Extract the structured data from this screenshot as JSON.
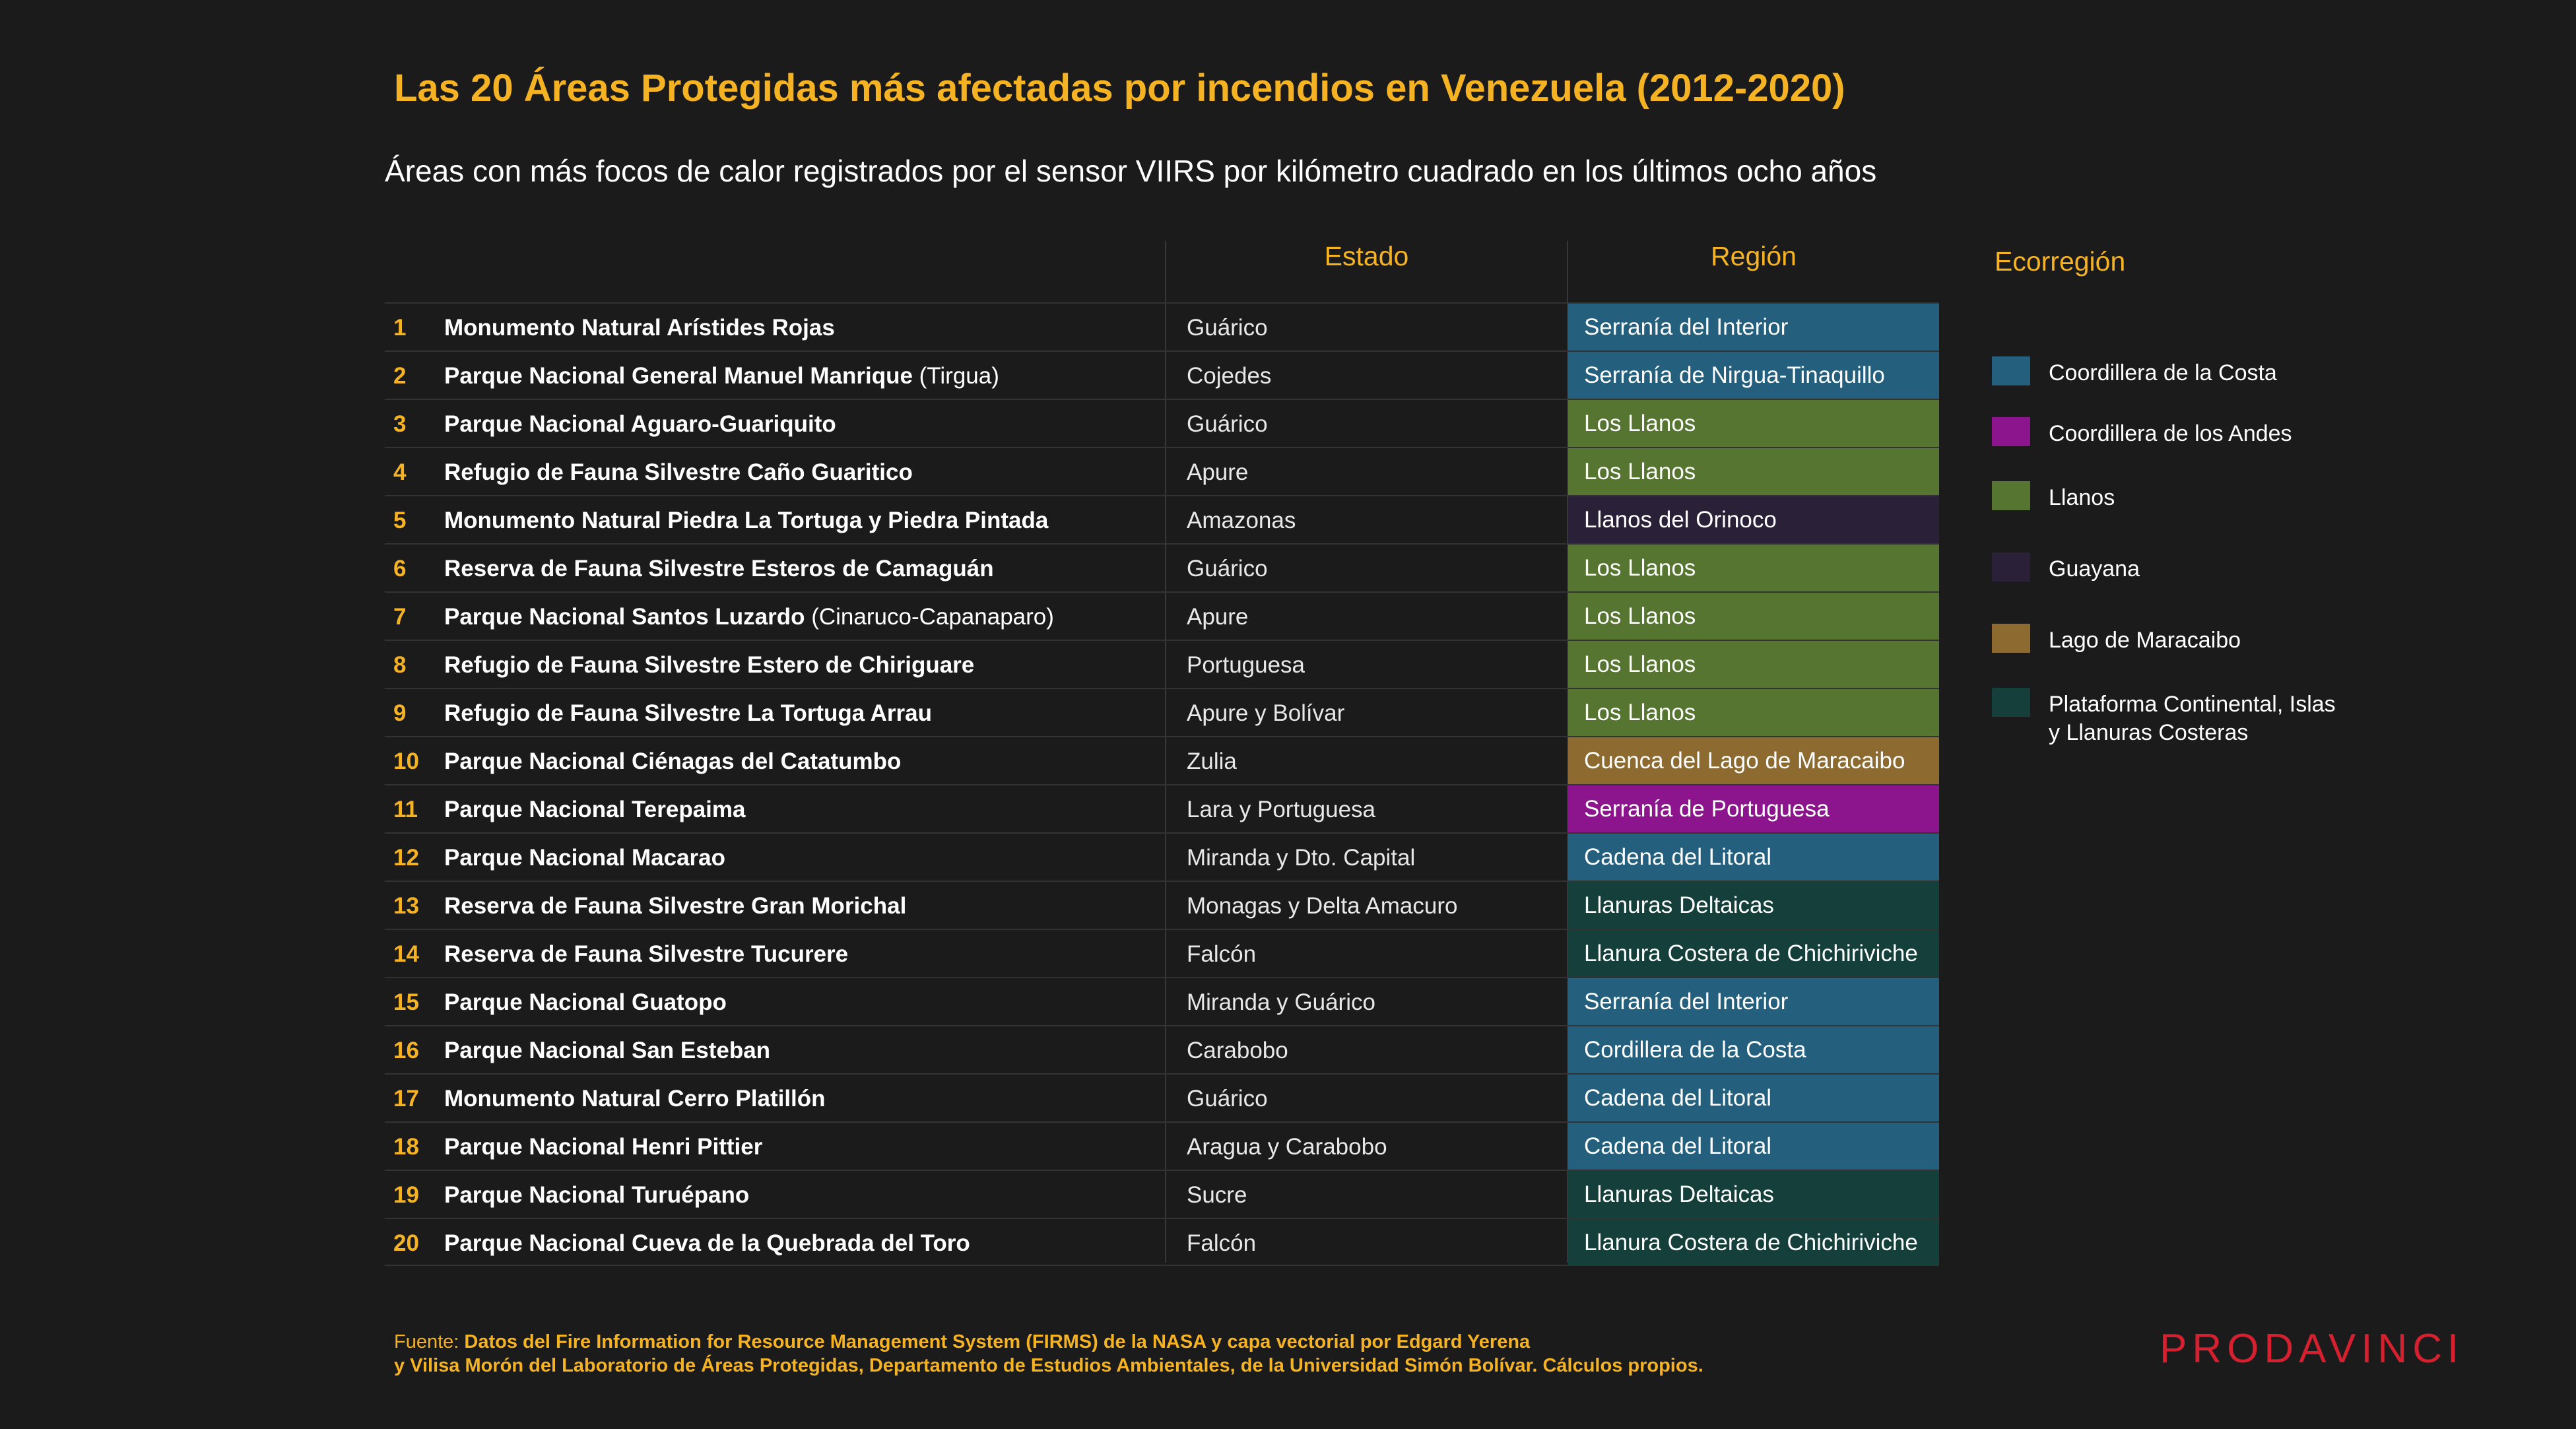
{
  "title": "Las 20 Áreas Protegidas más afectadas por incendios en Venezuela (2012-2020)",
  "subtitle": "Áreas con más focos de calor registrados por el sensor VIIRS por kilómetro cuadrado en los últimos ocho años",
  "headers": {
    "estado": "Estado",
    "region": "Región"
  },
  "colors": {
    "accent": "#f5b324",
    "costa": "#24607d",
    "andes": "#8c148c",
    "llanos": "#567530",
    "guayana": "#2a2138",
    "maracaibo": "#8d6a30",
    "plataforma": "#153f3a",
    "brand": "#d4202f"
  },
  "rows": [
    {
      "num": "1",
      "name": "Monumento Natural Arístides Rojas",
      "extra": "",
      "estado": "Guárico",
      "region": "Serranía del Interior",
      "eco": "costa"
    },
    {
      "num": "2",
      "name": "Parque Nacional General Manuel Manrique",
      "extra": " (Tirgua)",
      "estado": "Cojedes",
      "region": "Serranía de Nirgua-Tinaquillo",
      "eco": "costa"
    },
    {
      "num": "3",
      "name": "Parque Nacional Aguaro-Guariquito",
      "extra": "",
      "estado": "Guárico",
      "region": "Los Llanos",
      "eco": "llanos"
    },
    {
      "num": "4",
      "name": "Refugio de Fauna Silvestre Caño Guaritico",
      "extra": "",
      "estado": "Apure",
      "region": "Los Llanos",
      "eco": "llanos"
    },
    {
      "num": "5",
      "name": "Monumento Natural Piedra La Tortuga y Piedra Pintada",
      "extra": "",
      "estado": "Amazonas",
      "region": "Llanos del Orinoco",
      "eco": "guayana"
    },
    {
      "num": "6",
      "name": "Reserva de Fauna Silvestre Esteros de Camaguán",
      "extra": "",
      "estado": "Guárico",
      "region": "Los Llanos",
      "eco": "llanos"
    },
    {
      "num": "7",
      "name": "Parque Nacional Santos Luzardo",
      "extra": " (Cinaruco-Capanaparo)",
      "estado": "Apure",
      "region": "Los Llanos",
      "eco": "llanos"
    },
    {
      "num": "8",
      "name": "Refugio de Fauna Silvestre Estero de Chiriguare",
      "extra": "",
      "estado": "Portuguesa",
      "region": "Los Llanos",
      "eco": "llanos"
    },
    {
      "num": "9",
      "name": "Refugio de Fauna Silvestre La Tortuga Arrau",
      "extra": "",
      "estado": "Apure y Bolívar",
      "region": "Los Llanos",
      "eco": "llanos"
    },
    {
      "num": "10",
      "name": "Parque Nacional Ciénagas del Catatumbo",
      "extra": "",
      "estado": "Zulia",
      "region": "Cuenca del Lago de Maracaibo",
      "eco": "maracaibo"
    },
    {
      "num": "11",
      "name": "Parque Nacional Terepaima",
      "extra": "",
      "estado": "Lara y Portuguesa",
      "region": "Serranía de Portuguesa",
      "eco": "andes"
    },
    {
      "num": "12",
      "name": "Parque Nacional Macarao",
      "extra": "",
      "estado": "Miranda y Dto. Capital",
      "region": "Cadena del Litoral",
      "eco": "costa"
    },
    {
      "num": "13",
      "name": "Reserva de Fauna Silvestre Gran Morichal",
      "extra": "",
      "estado": "Monagas y Delta Amacuro",
      "region": "Llanuras Deltaicas",
      "eco": "plataforma"
    },
    {
      "num": "14",
      "name": "Reserva de Fauna Silvestre Tucurere",
      "extra": "",
      "estado": "Falcón",
      "region": "Llanura Costera de Chichiriviche",
      "eco": "plataforma"
    },
    {
      "num": "15",
      "name": "Parque Nacional Guatopo",
      "extra": "",
      "estado": "Miranda y Guárico",
      "region": "Serranía del Interior",
      "eco": "costa"
    },
    {
      "num": "16",
      "name": "Parque Nacional San Esteban",
      "extra": "",
      "estado": "Carabobo",
      "region": "Cordillera de la Costa",
      "eco": "costa"
    },
    {
      "num": "17",
      "name": "Monumento Natural Cerro Platillón",
      "extra": "",
      "estado": "Guárico",
      "region": "Cadena del Litoral",
      "eco": "costa"
    },
    {
      "num": "18",
      "name": "Parque Nacional Henri Pittier",
      "extra": "",
      "estado": "Aragua y Carabobo",
      "region": "Cadena del Litoral",
      "eco": "costa"
    },
    {
      "num": "19",
      "name": "Parque Nacional Turuépano",
      "extra": "",
      "estado": "Sucre",
      "region": "Llanuras Deltaicas",
      "eco": "plataforma"
    },
    {
      "num": "20",
      "name": "Parque Nacional Cueva de la Quebrada del Toro",
      "extra": "",
      "estado": "Falcón",
      "region": "Llanura Costera de Chichiriviche",
      "eco": "plataforma"
    }
  ],
  "legend": {
    "title": "Ecorregión",
    "items": [
      {
        "eco": "costa",
        "label": "Coordillera de la Costa"
      },
      {
        "eco": "andes",
        "label": "Coordillera de los Andes"
      },
      {
        "eco": "llanos",
        "label": "Llanos"
      },
      {
        "eco": "guayana",
        "label": "Guayana"
      },
      {
        "eco": "maracaibo",
        "label": "Lago de Maracaibo"
      },
      {
        "eco": "plataforma",
        "label": "Plataforma Continental, Islas\ny Llanuras Costeras"
      }
    ]
  },
  "source": {
    "prefix": "Fuente: ",
    "line1": "Datos del Fire Information for Resource Management System (FIRMS) de la NASA y capa vectorial por Edgard Yerena",
    "line2": " y Vilisa Morón del Laboratorio de Áreas Protegidas, Departamento de Estudios Ambientales, de la Universidad Simón Bolívar. Cálculos propios."
  },
  "logo": "PRODAVINCI"
}
